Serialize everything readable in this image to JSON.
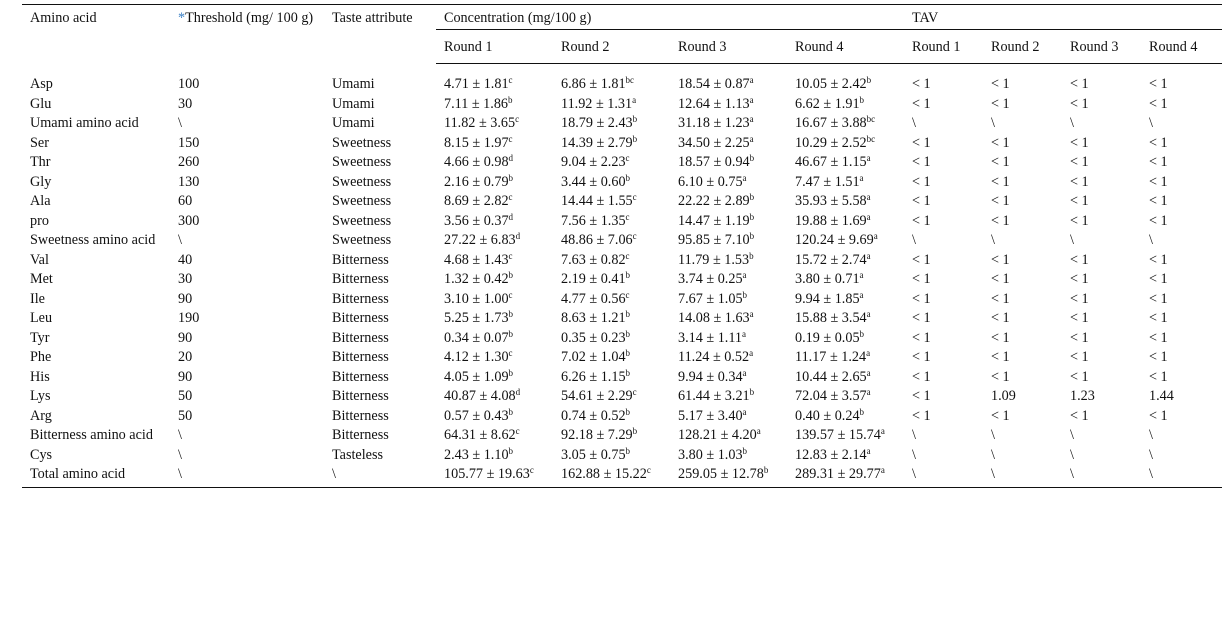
{
  "headers": {
    "amino_acid": "Amino acid",
    "threshold_star": "*",
    "threshold": "Threshold (mg/ 100 g)",
    "taste": "Taste attribute",
    "concentration": "Concentration (mg/100 g)",
    "tav": "TAV",
    "conc_rounds": [
      "Round 1",
      "Round 2",
      "Round 3",
      "Round 4"
    ],
    "tav_rounds": [
      "Round 1",
      "Round 2",
      "Round 3",
      "Round 4"
    ]
  },
  "rows": [
    {
      "name": "Asp",
      "threshold": "100",
      "taste": "Umami",
      "c": [
        [
          "4.71 ± 1.81",
          "c"
        ],
        [
          "6.86 ± 1.81",
          "bc"
        ],
        [
          "18.54 ± 0.87",
          "a"
        ],
        [
          "10.05 ± 2.42",
          "b"
        ]
      ],
      "tav": [
        "< 1",
        "< 1",
        "< 1",
        "< 1"
      ]
    },
    {
      "name": "Glu",
      "threshold": "30",
      "taste": "Umami",
      "c": [
        [
          "7.11 ± 1.86",
          "b"
        ],
        [
          "11.92 ± 1.31",
          "a"
        ],
        [
          "12.64 ± 1.13",
          "a"
        ],
        [
          "6.62 ± 1.91",
          "b"
        ]
      ],
      "tav": [
        "< 1",
        "< 1",
        "< 1",
        "< 1"
      ]
    },
    {
      "name": "Umami amino acid",
      "threshold": "\\",
      "taste": "Umami",
      "c": [
        [
          "11.82 ± 3.65",
          "c"
        ],
        [
          "18.79 ± 2.43",
          "b"
        ],
        [
          "31.18 ± 1.23",
          "a"
        ],
        [
          "16.67 ± 3.88",
          "bc"
        ]
      ],
      "tav": [
        "\\",
        "\\",
        "\\",
        "\\"
      ]
    },
    {
      "name": "Ser",
      "threshold": "150",
      "taste": "Sweetness",
      "c": [
        [
          "8.15 ± 1.97",
          "c"
        ],
        [
          "14.39 ± 2.79",
          "b"
        ],
        [
          "34.50 ± 2.25",
          "a"
        ],
        [
          "10.29 ± 2.52",
          "bc"
        ]
      ],
      "tav": [
        "< 1",
        "< 1",
        "< 1",
        "< 1"
      ]
    },
    {
      "name": "Thr",
      "threshold": "260",
      "taste": "Sweetness",
      "c": [
        [
          "4.66 ± 0.98",
          "d"
        ],
        [
          "9.04 ± 2.23",
          "c"
        ],
        [
          "18.57 ± 0.94",
          "b"
        ],
        [
          "46.67 ± 1.15",
          "a"
        ]
      ],
      "tav": [
        "< 1",
        "< 1",
        "< 1",
        "< 1"
      ]
    },
    {
      "name": "Gly",
      "threshold": "130",
      "taste": "Sweetness",
      "c": [
        [
          "2.16 ± 0.79",
          "b"
        ],
        [
          "3.44 ± 0.60",
          "b"
        ],
        [
          "6.10 ± 0.75",
          "a"
        ],
        [
          "7.47 ± 1.51",
          "a"
        ]
      ],
      "tav": [
        "< 1",
        "< 1",
        "< 1",
        "< 1"
      ]
    },
    {
      "name": "Ala",
      "threshold": "60",
      "taste": "Sweetness",
      "c": [
        [
          "8.69 ± 2.82",
          "c"
        ],
        [
          "14.44 ± 1.55",
          "c"
        ],
        [
          "22.22 ± 2.89",
          "b"
        ],
        [
          "35.93 ± 5.58",
          "a"
        ]
      ],
      "tav": [
        "< 1",
        "< 1",
        "< 1",
        "< 1"
      ]
    },
    {
      "name": "pro",
      "threshold": "300",
      "taste": "Sweetness",
      "c": [
        [
          "3.56 ± 0.37",
          "d"
        ],
        [
          "7.56 ± 1.35",
          "c"
        ],
        [
          "14.47 ± 1.19",
          "b"
        ],
        [
          "19.88 ± 1.69",
          "a"
        ]
      ],
      "tav": [
        "< 1",
        "< 1",
        "< 1",
        "< 1"
      ]
    },
    {
      "name": "Sweetness amino acid",
      "threshold": "\\",
      "taste": "Sweetness",
      "c": [
        [
          "27.22 ± 6.83",
          "d"
        ],
        [
          "48.86 ± 7.06",
          "c"
        ],
        [
          "95.85 ± 7.10",
          "b"
        ],
        [
          "120.24 ± 9.69",
          "a"
        ]
      ],
      "tav": [
        "\\",
        "\\",
        "\\",
        "\\"
      ]
    },
    {
      "name": "Val",
      "threshold": "40",
      "taste": "Bitterness",
      "c": [
        [
          "4.68 ± 1.43",
          "c"
        ],
        [
          "7.63 ± 0.82",
          "c"
        ],
        [
          "11.79 ± 1.53",
          "b"
        ],
        [
          "15.72 ± 2.74",
          "a"
        ]
      ],
      "tav": [
        "< 1",
        "< 1",
        "< 1",
        "< 1"
      ]
    },
    {
      "name": "Met",
      "threshold": "30",
      "taste": "Bitterness",
      "c": [
        [
          "1.32 ± 0.42",
          "b"
        ],
        [
          "2.19 ± 0.41",
          "b"
        ],
        [
          "3.74 ± 0.25",
          "a"
        ],
        [
          "3.80 ± 0.71",
          "a"
        ]
      ],
      "tav": [
        "< 1",
        "< 1",
        "< 1",
        "< 1"
      ]
    },
    {
      "name": "Ile",
      "threshold": "90",
      "taste": "Bitterness",
      "c": [
        [
          "3.10 ± 1.00",
          "c"
        ],
        [
          "4.77 ± 0.56",
          "c"
        ],
        [
          "7.67 ± 1.05",
          "b"
        ],
        [
          "9.94 ± 1.85",
          "a"
        ]
      ],
      "tav": [
        "< 1",
        "< 1",
        "< 1",
        "< 1"
      ]
    },
    {
      "name": "Leu",
      "threshold": "190",
      "taste": "Bitterness",
      "c": [
        [
          "5.25 ± 1.73",
          "b"
        ],
        [
          "8.63 ± 1.21",
          "b"
        ],
        [
          "14.08 ± 1.63",
          "a"
        ],
        [
          "15.88 ± 3.54",
          "a"
        ]
      ],
      "tav": [
        "< 1",
        "< 1",
        "< 1",
        "< 1"
      ]
    },
    {
      "name": "Tyr",
      "threshold": "90",
      "taste": "Bitterness",
      "c": [
        [
          "0.34 ± 0.07",
          "b"
        ],
        [
          "0.35 ± 0.23",
          "b"
        ],
        [
          "3.14 ± 1.11",
          "a"
        ],
        [
          "0.19 ± 0.05",
          "b"
        ]
      ],
      "tav": [
        "< 1",
        "< 1",
        "< 1",
        "< 1"
      ]
    },
    {
      "name": "Phe",
      "threshold": "20",
      "taste": "Bitterness",
      "c": [
        [
          "4.12 ± 1.30",
          "c"
        ],
        [
          "7.02 ± 1.04",
          "b"
        ],
        [
          "11.24 ± 0.52",
          "a"
        ],
        [
          "11.17 ± 1.24",
          "a"
        ]
      ],
      "tav": [
        "< 1",
        "< 1",
        "< 1",
        "< 1"
      ]
    },
    {
      "name": "His",
      "threshold": "90",
      "taste": "Bitterness",
      "c": [
        [
          "4.05 ± 1.09",
          "b"
        ],
        [
          "6.26 ± 1.15",
          "b"
        ],
        [
          "9.94 ± 0.34",
          "a"
        ],
        [
          "10.44 ± 2.65",
          "a"
        ]
      ],
      "tav": [
        "< 1",
        "< 1",
        "< 1",
        "< 1"
      ]
    },
    {
      "name": "Lys",
      "threshold": "50",
      "taste": "Bitterness",
      "c": [
        [
          "40.87 ± 4.08",
          "d"
        ],
        [
          "54.61 ± 2.29",
          "c"
        ],
        [
          "61.44 ± 3.21",
          "b"
        ],
        [
          "72.04 ± 3.57",
          "a"
        ]
      ],
      "tav": [
        "< 1",
        "1.09",
        "1.23",
        "1.44"
      ]
    },
    {
      "name": "Arg",
      "threshold": "50",
      "taste": "Bitterness",
      "c": [
        [
          "0.57 ± 0.43",
          "b"
        ],
        [
          "0.74 ± 0.52",
          "b"
        ],
        [
          "5.17 ± 3.40",
          "a"
        ],
        [
          "0.40 ± 0.24",
          "b"
        ]
      ],
      "tav": [
        "< 1",
        "< 1",
        "< 1",
        "< 1"
      ]
    },
    {
      "name": "Bitterness amino acid",
      "threshold": "\\",
      "taste": "Bitterness",
      "c": [
        [
          "64.31 ± 8.62",
          "c"
        ],
        [
          "92.18 ± 7.29",
          "b"
        ],
        [
          "128.21 ± 4.20",
          "a"
        ],
        [
          "139.57 ± 15.74",
          "a"
        ]
      ],
      "tav": [
        "\\",
        "\\",
        "\\",
        "\\"
      ]
    },
    {
      "name": "Cys",
      "threshold": "\\",
      "taste": "Tasteless",
      "c": [
        [
          "2.43 ± 1.10",
          "b"
        ],
        [
          "3.05 ± 0.75",
          "b"
        ],
        [
          "3.80 ± 1.03",
          "b"
        ],
        [
          "12.83 ± 2.14",
          "a"
        ]
      ],
      "tav": [
        "\\",
        "\\",
        "\\",
        "\\"
      ]
    },
    {
      "name": "Total amino acid",
      "threshold": "\\",
      "taste": "\\",
      "c": [
        [
          "105.77 ± 19.63",
          "c"
        ],
        [
          "162.88 ± 15.22",
          "c"
        ],
        [
          "259.05 ± 12.78",
          "b"
        ],
        [
          "289.31 ± 29.77",
          "a"
        ]
      ],
      "tav": [
        "\\",
        "\\",
        "\\",
        "\\"
      ]
    }
  ]
}
